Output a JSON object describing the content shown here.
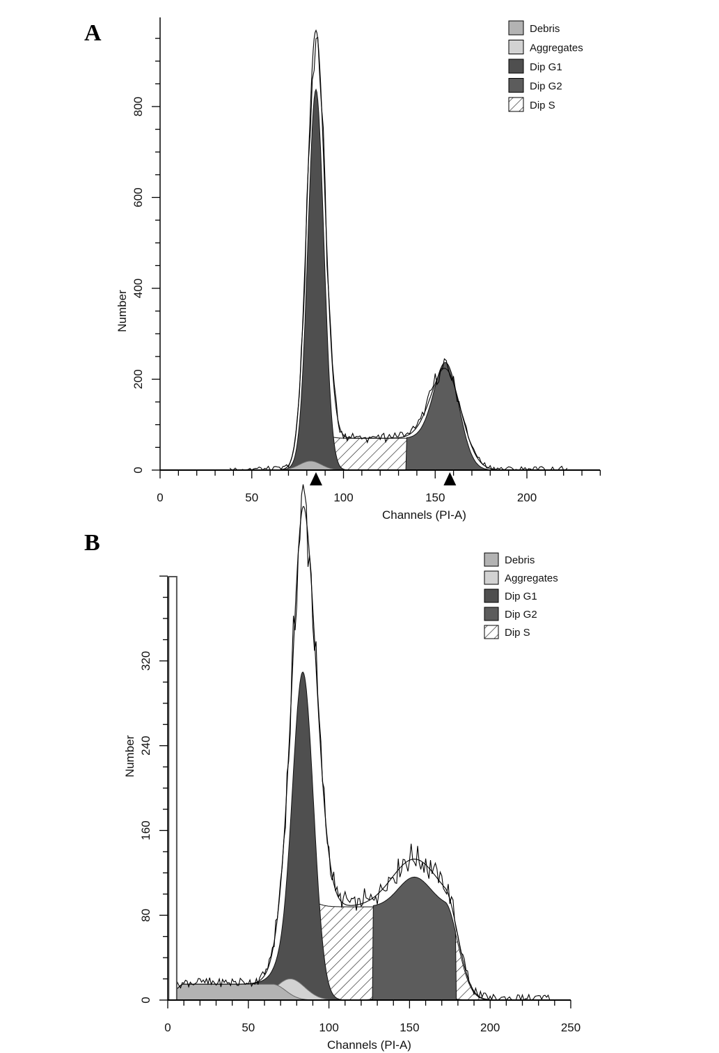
{
  "chart_data": [
    {
      "type": "area",
      "panel_label": "A",
      "xlabel": "Channels (PI-A)",
      "ylabel": "Number",
      "xlim": [
        0,
        240
      ],
      "ylim": [
        0,
        995
      ],
      "xticks": [
        "0",
        "50",
        "100",
        "150",
        "200"
      ],
      "xtick_values": [
        0,
        50,
        100,
        150,
        200
      ],
      "yticks": [
        "0",
        "200",
        "400",
        "600",
        "800"
      ],
      "ytick_values": [
        0,
        200,
        400,
        600,
        800
      ],
      "legend": [
        "Debris",
        "Aggregates",
        "Dip G1",
        "Dip G2",
        "Dip S"
      ],
      "legend_placement": "top-right",
      "markers_x": [
        85,
        158
      ],
      "components": {
        "debris": {
          "type": "gaussian",
          "mean": 82,
          "height": 20,
          "sd": 6
        },
        "g1": {
          "type": "gaussian",
          "mean": 85,
          "height": 820,
          "sd": 4.3
        },
        "g2": {
          "type": "gaussian",
          "mean": 156.5,
          "height": 175,
          "sd": 7
        },
        "s": {
          "type": "plateau",
          "start": 85,
          "end": 152,
          "height": 70
        }
      },
      "fit_envelope": {
        "g1_height": 880,
        "g1_sd": 4.8,
        "g2_height": 215,
        "g2_sd": 8.5
      },
      "histogram_range": [
        38,
        222
      ],
      "gate": null
    },
    {
      "type": "area",
      "panel_label": "B",
      "xlabel": "Channels (PI-A)",
      "ylabel": "Number",
      "xlim": [
        0,
        250
      ],
      "ylim": [
        0,
        400
      ],
      "xticks": [
        "0",
        "50",
        "100",
        "150",
        "200",
        "250"
      ],
      "xtick_values": [
        0,
        50,
        100,
        150,
        200,
        250
      ],
      "yticks": [
        "0",
        "80",
        "160",
        "240",
        "320"
      ],
      "ytick_values": [
        0,
        80,
        160,
        240,
        320
      ],
      "legend": [
        "Debris",
        "Aggregates",
        "Dip G1",
        "Dip G2",
        "Dip S"
      ],
      "legend_placement": "top-right",
      "markers_x": [],
      "components": {
        "debris": {
          "type": "plateau",
          "start": 10,
          "end": 65,
          "height": 15
        },
        "aggregates": {
          "type": "gaussian",
          "mean": 76,
          "height": 20,
          "sd": 9
        },
        "g1": {
          "type": "gaussian",
          "mean": 84,
          "height": 295,
          "sd": 6.5
        },
        "g2": {
          "type": "gaussian",
          "mean": 153,
          "height": 28,
          "sd": 10
        },
        "s": {
          "type": "plateau",
          "start": 85,
          "end": 172,
          "height": 88
        }
      },
      "fit_envelope": {
        "g1_height": 365,
        "g1_sd": 8,
        "g2_height": 60,
        "g2_sd": 14
      },
      "histogram_range": [
        5,
        238
      ],
      "gate": [
        1,
        6
      ]
    }
  ],
  "colors": {
    "debris": "#b3b3b3",
    "aggregates": "#d2d2d2",
    "g1": "#4f4f4f",
    "g2": "#5c5c5c",
    "s_hatch": "#222222",
    "axis": "#000000"
  }
}
